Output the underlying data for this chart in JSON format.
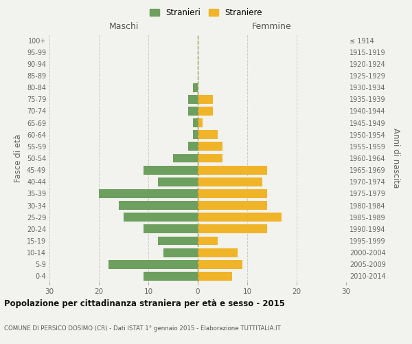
{
  "age_groups": [
    "0-4",
    "5-9",
    "10-14",
    "15-19",
    "20-24",
    "25-29",
    "30-34",
    "35-39",
    "40-44",
    "45-49",
    "50-54",
    "55-59",
    "60-64",
    "65-69",
    "70-74",
    "75-79",
    "80-84",
    "85-89",
    "90-94",
    "95-99",
    "100+"
  ],
  "birth_years": [
    "2010-2014",
    "2005-2009",
    "2000-2004",
    "1995-1999",
    "1990-1994",
    "1985-1989",
    "1980-1984",
    "1975-1979",
    "1970-1974",
    "1965-1969",
    "1960-1964",
    "1955-1959",
    "1950-1954",
    "1945-1949",
    "1940-1944",
    "1935-1939",
    "1930-1934",
    "1925-1929",
    "1920-1924",
    "1915-1919",
    "≤ 1914"
  ],
  "males": [
    11,
    18,
    7,
    8,
    11,
    15,
    16,
    20,
    8,
    11,
    5,
    2,
    1,
    1,
    2,
    2,
    1,
    0,
    0,
    0,
    0
  ],
  "females": [
    7,
    9,
    8,
    4,
    14,
    17,
    14,
    14,
    13,
    14,
    5,
    5,
    4,
    1,
    3,
    3,
    0,
    0,
    0,
    0,
    0
  ],
  "male_color": "#6d9f5e",
  "female_color": "#f0b429",
  "background_color": "#f2f2ee",
  "grid_color": "#cccccc",
  "title": "Popolazione per cittadinanza straniera per età e sesso - 2015",
  "subtitle": "COMUNE DI PERSICO DOSIMO (CR) - Dati ISTAT 1° gennaio 2015 - Elaborazione TUTTITALIA.IT",
  "xlabel_left": "Maschi",
  "xlabel_right": "Femmine",
  "ylabel_left": "Fasce di età",
  "ylabel_right": "Anni di nascita",
  "legend_male": "Stranieri",
  "legend_female": "Straniere",
  "xlim": 30,
  "bar_height": 0.75
}
